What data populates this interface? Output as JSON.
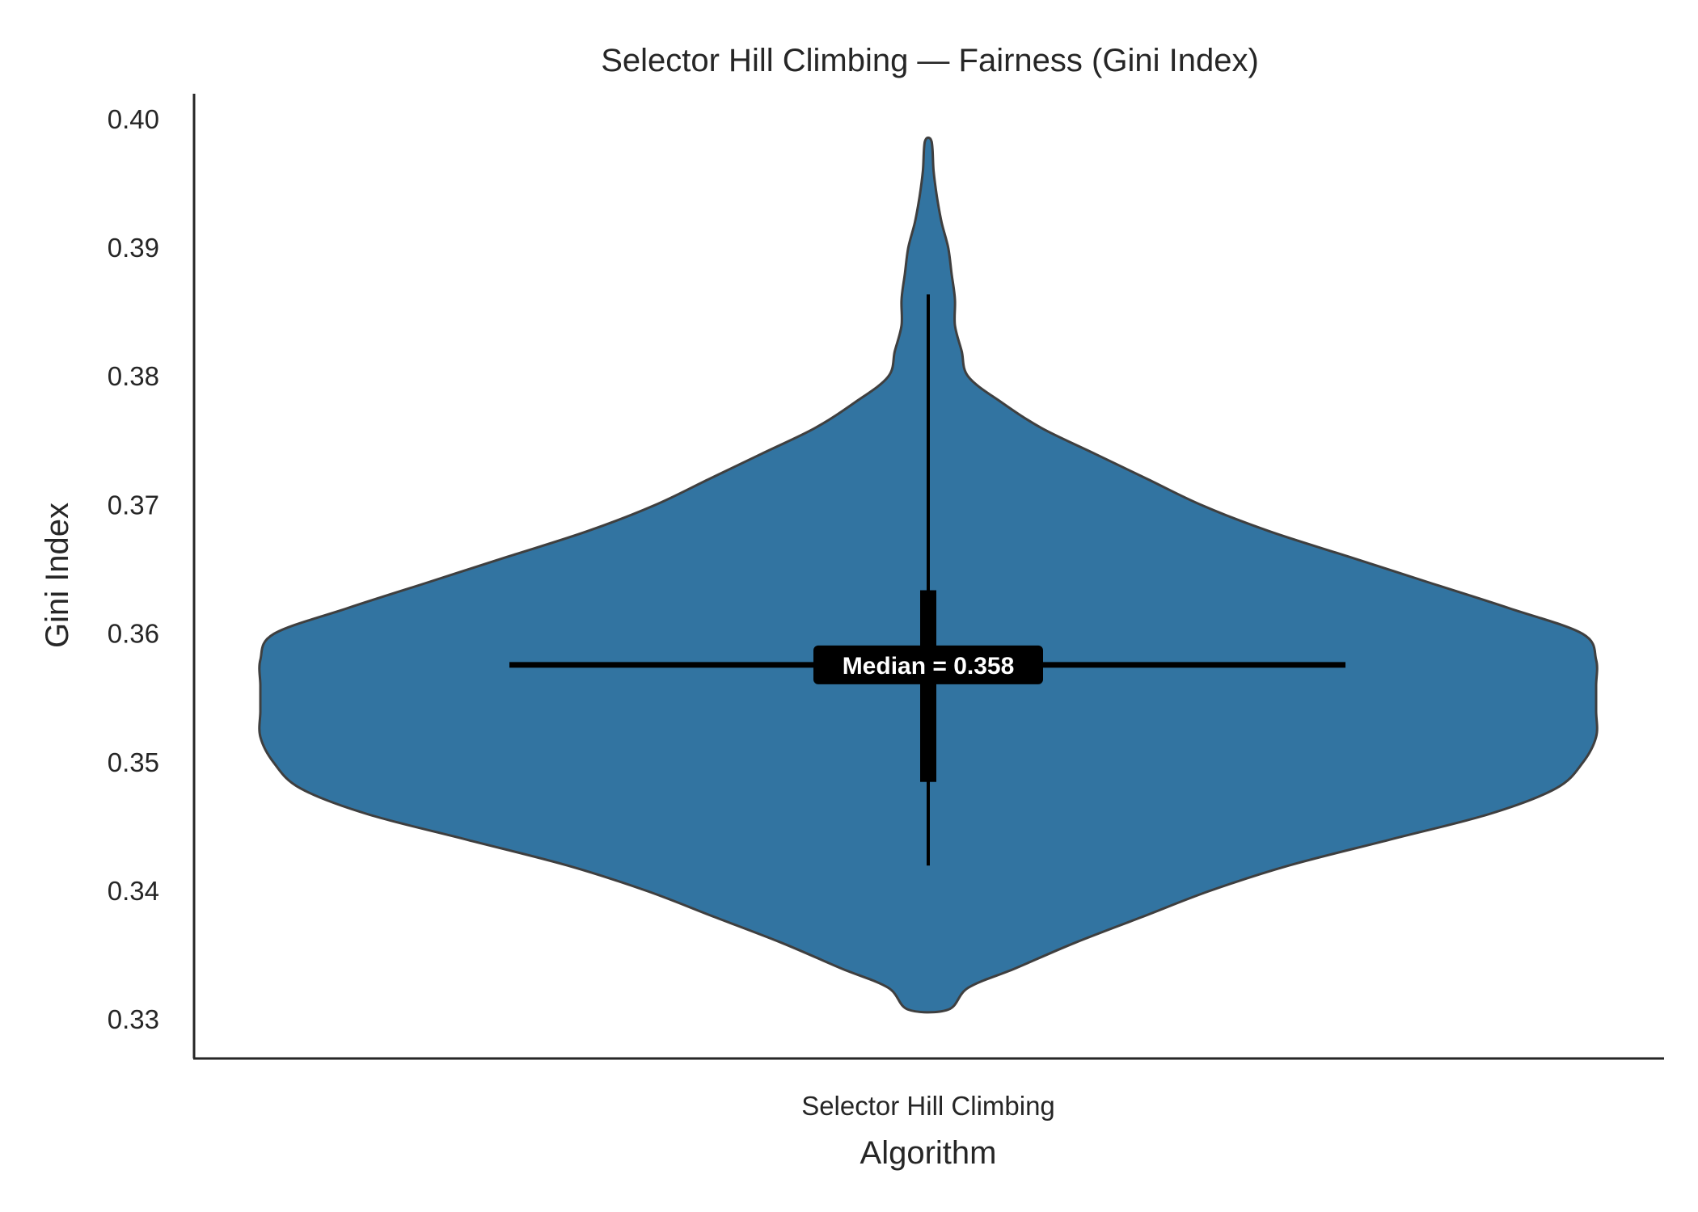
{
  "chart_data": {
    "type": "violin",
    "title": "Selector Hill Climbing — Fairness (Gini Index)",
    "xlabel": "Algorithm",
    "ylabel": "Gini Index",
    "categories": [
      "Selector Hill Climbing"
    ],
    "ylim": [
      0.327,
      0.402
    ],
    "yticks": [
      "0.33",
      "0.34",
      "0.35",
      "0.36",
      "0.37",
      "0.38",
      "0.39",
      "0.40"
    ],
    "grid": false,
    "colors": {
      "violin_fill": "#3274a1",
      "violin_edge": "#3f3f3f",
      "box": "#000000",
      "median_line": "#000000"
    },
    "violin": {
      "min": 0.3308,
      "max": 0.3983,
      "q1": 0.3485,
      "median": 0.3576,
      "q3": 0.3634,
      "whisker_low": 0.342,
      "whisker_high": 0.3864,
      "density_profile": [
        [
          0.3308,
          0.03
        ],
        [
          0.3325,
          0.06
        ],
        [
          0.334,
          0.13
        ],
        [
          0.336,
          0.22
        ],
        [
          0.338,
          0.32
        ],
        [
          0.34,
          0.42
        ],
        [
          0.342,
          0.54
        ],
        [
          0.344,
          0.69
        ],
        [
          0.346,
          0.84
        ],
        [
          0.348,
          0.94
        ],
        [
          0.35,
          0.98
        ],
        [
          0.352,
          1.0
        ],
        [
          0.354,
          1.0
        ],
        [
          0.356,
          1.0
        ],
        [
          0.358,
          1.0
        ],
        [
          0.36,
          0.98
        ],
        [
          0.362,
          0.87
        ],
        [
          0.364,
          0.75
        ],
        [
          0.366,
          0.63
        ],
        [
          0.368,
          0.51
        ],
        [
          0.37,
          0.41
        ],
        [
          0.372,
          0.33
        ],
        [
          0.374,
          0.25
        ],
        [
          0.376,
          0.17
        ],
        [
          0.378,
          0.11
        ],
        [
          0.38,
          0.06
        ],
        [
          0.382,
          0.05
        ],
        [
          0.384,
          0.04
        ],
        [
          0.386,
          0.04
        ],
        [
          0.388,
          0.035
        ],
        [
          0.39,
          0.03
        ],
        [
          0.392,
          0.02
        ],
        [
          0.394,
          0.013
        ],
        [
          0.396,
          0.008
        ],
        [
          0.3983,
          0.005
        ]
      ]
    },
    "annotation": {
      "text": "Median = 0.358",
      "value": 0.3576
    }
  }
}
